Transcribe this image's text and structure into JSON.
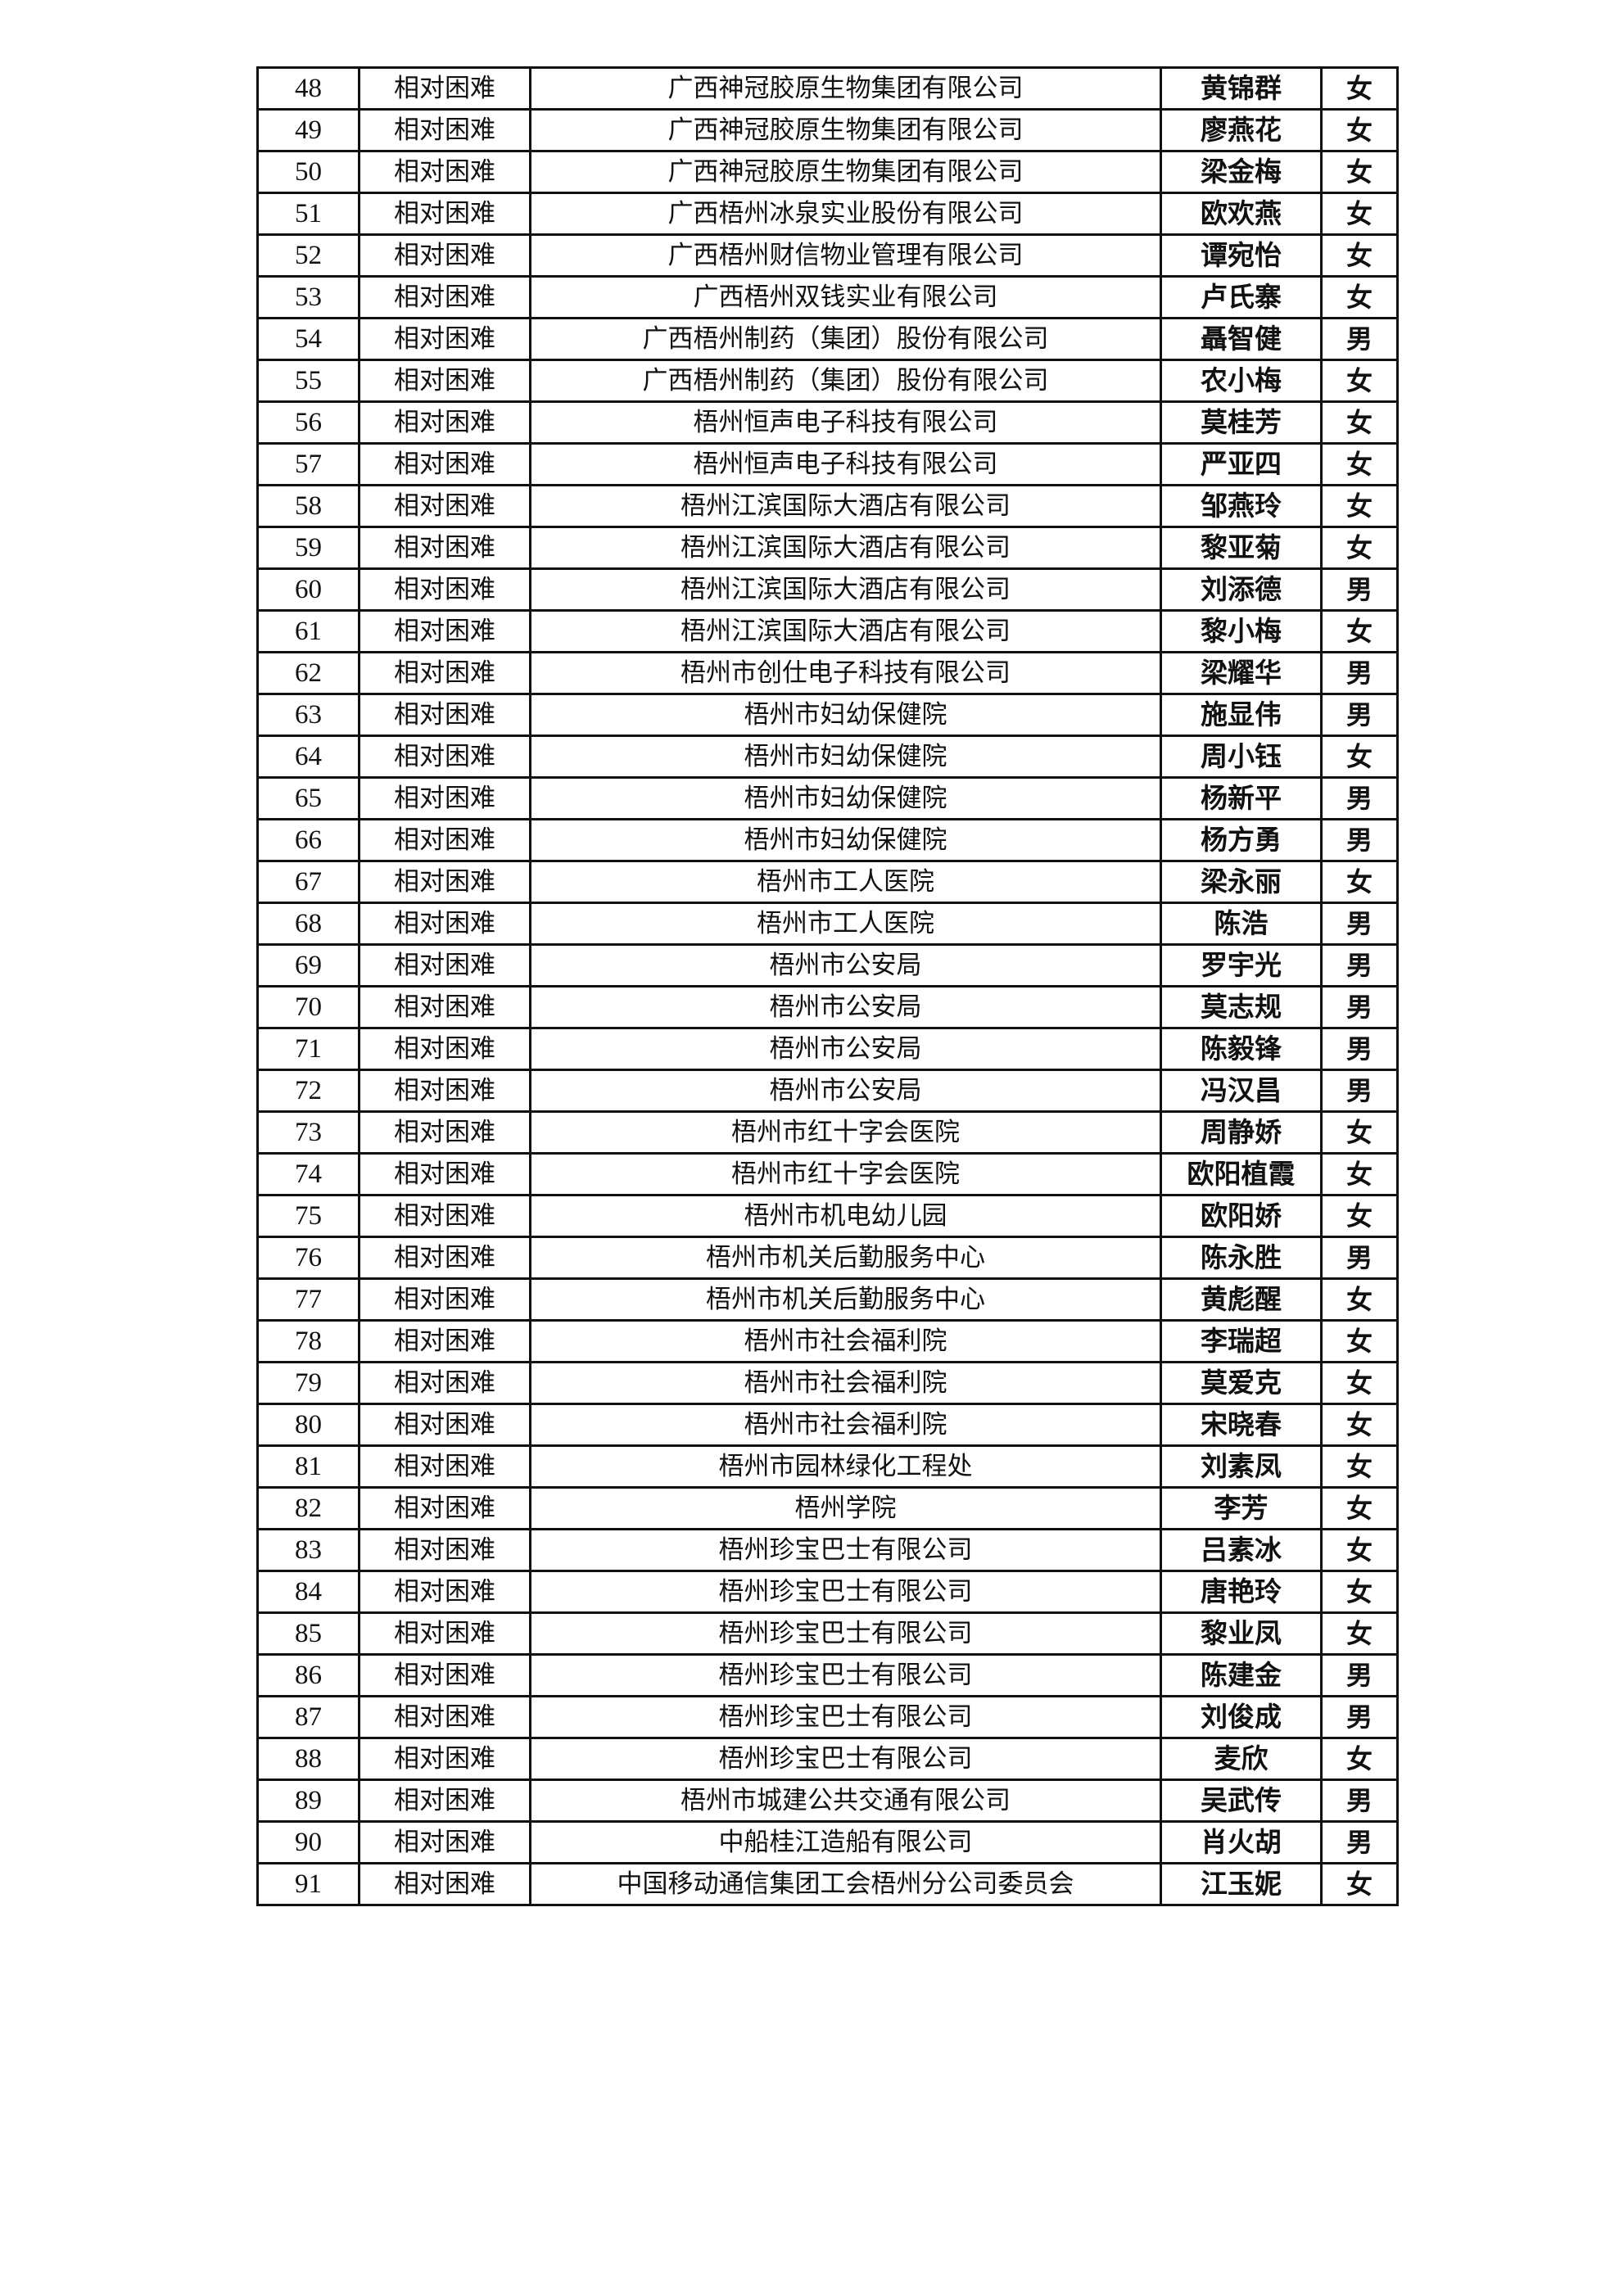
{
  "table": {
    "rows": [
      {
        "no": "48",
        "type": "相对困难",
        "company": "广西神冠胶原生物集团有限公司",
        "name": "黄锦群",
        "gender": "女"
      },
      {
        "no": "49",
        "type": "相对困难",
        "company": "广西神冠胶原生物集团有限公司",
        "name": "廖燕花",
        "gender": "女"
      },
      {
        "no": "50",
        "type": "相对困难",
        "company": "广西神冠胶原生物集团有限公司",
        "name": "梁金梅",
        "gender": "女"
      },
      {
        "no": "51",
        "type": "相对困难",
        "company": "广西梧州冰泉实业股份有限公司",
        "name": "欧欢燕",
        "gender": "女"
      },
      {
        "no": "52",
        "type": "相对困难",
        "company": "广西梧州财信物业管理有限公司",
        "name": "谭宛怡",
        "gender": "女"
      },
      {
        "no": "53",
        "type": "相对困难",
        "company": "广西梧州双钱实业有限公司",
        "name": "卢氏寨",
        "gender": "女"
      },
      {
        "no": "54",
        "type": "相对困难",
        "company": "广西梧州制药（集团）股份有限公司",
        "name": "聶智健",
        "gender": "男"
      },
      {
        "no": "55",
        "type": "相对困难",
        "company": "广西梧州制药（集团）股份有限公司",
        "name": "农小梅",
        "gender": "女"
      },
      {
        "no": "56",
        "type": "相对困难",
        "company": "梧州恒声电子科技有限公司",
        "name": "莫桂芳",
        "gender": "女"
      },
      {
        "no": "57",
        "type": "相对困难",
        "company": "梧州恒声电子科技有限公司",
        "name": "严亚四",
        "gender": "女"
      },
      {
        "no": "58",
        "type": "相对困难",
        "company": "梧州江滨国际大酒店有限公司",
        "name": "邹燕玲",
        "gender": "女"
      },
      {
        "no": "59",
        "type": "相对困难",
        "company": "梧州江滨国际大酒店有限公司",
        "name": "黎亚菊",
        "gender": "女"
      },
      {
        "no": "60",
        "type": "相对困难",
        "company": "梧州江滨国际大酒店有限公司",
        "name": "刘添德",
        "gender": "男"
      },
      {
        "no": "61",
        "type": "相对困难",
        "company": "梧州江滨国际大酒店有限公司",
        "name": "黎小梅",
        "gender": "女"
      },
      {
        "no": "62",
        "type": "相对困难",
        "company": "梧州市创仕电子科技有限公司",
        "name": "梁耀华",
        "gender": "男"
      },
      {
        "no": "63",
        "type": "相对困难",
        "company": "梧州市妇幼保健院",
        "name": "施显伟",
        "gender": "男"
      },
      {
        "no": "64",
        "type": "相对困难",
        "company": "梧州市妇幼保健院",
        "name": "周小钰",
        "gender": "女"
      },
      {
        "no": "65",
        "type": "相对困难",
        "company": "梧州市妇幼保健院",
        "name": "杨新平",
        "gender": "男"
      },
      {
        "no": "66",
        "type": "相对困难",
        "company": "梧州市妇幼保健院",
        "name": "杨方勇",
        "gender": "男"
      },
      {
        "no": "67",
        "type": "相对困难",
        "company": "梧州市工人医院",
        "name": "梁永丽",
        "gender": "女"
      },
      {
        "no": "68",
        "type": "相对困难",
        "company": "梧州市工人医院",
        "name": "陈浩",
        "gender": "男"
      },
      {
        "no": "69",
        "type": "相对困难",
        "company": "梧州市公安局",
        "name": "罗宇光",
        "gender": "男"
      },
      {
        "no": "70",
        "type": "相对困难",
        "company": "梧州市公安局",
        "name": "莫志规",
        "gender": "男"
      },
      {
        "no": "71",
        "type": "相对困难",
        "company": "梧州市公安局",
        "name": "陈毅锋",
        "gender": "男"
      },
      {
        "no": "72",
        "type": "相对困难",
        "company": "梧州市公安局",
        "name": "冯汉昌",
        "gender": "男"
      },
      {
        "no": "73",
        "type": "相对困难",
        "company": "梧州市红十字会医院",
        "name": "周静娇",
        "gender": "女"
      },
      {
        "no": "74",
        "type": "相对困难",
        "company": "梧州市红十字会医院",
        "name": "欧阳植霞",
        "gender": "女"
      },
      {
        "no": "75",
        "type": "相对困难",
        "company": "梧州市机电幼儿园",
        "name": "欧阳娇",
        "gender": "女"
      },
      {
        "no": "76",
        "type": "相对困难",
        "company": "梧州市机关后勤服务中心",
        "name": "陈永胜",
        "gender": "男"
      },
      {
        "no": "77",
        "type": "相对困难",
        "company": "梧州市机关后勤服务中心",
        "name": "黄彪醒",
        "gender": "女"
      },
      {
        "no": "78",
        "type": "相对困难",
        "company": "梧州市社会福利院",
        "name": "李瑞超",
        "gender": "女"
      },
      {
        "no": "79",
        "type": "相对困难",
        "company": "梧州市社会福利院",
        "name": "莫爱克",
        "gender": "女"
      },
      {
        "no": "80",
        "type": "相对困难",
        "company": "梧州市社会福利院",
        "name": "宋晓春",
        "gender": "女"
      },
      {
        "no": "81",
        "type": "相对困难",
        "company": "梧州市园林绿化工程处",
        "name": "刘素凤",
        "gender": "女"
      },
      {
        "no": "82",
        "type": "相对困难",
        "company": "梧州学院",
        "name": "李芳",
        "gender": "女"
      },
      {
        "no": "83",
        "type": "相对困难",
        "company": "梧州珍宝巴士有限公司",
        "name": "吕素冰",
        "gender": "女"
      },
      {
        "no": "84",
        "type": "相对困难",
        "company": "梧州珍宝巴士有限公司",
        "name": "唐艳玲",
        "gender": "女"
      },
      {
        "no": "85",
        "type": "相对困难",
        "company": "梧州珍宝巴士有限公司",
        "name": "黎业凤",
        "gender": "女"
      },
      {
        "no": "86",
        "type": "相对困难",
        "company": "梧州珍宝巴士有限公司",
        "name": "陈建金",
        "gender": "男"
      },
      {
        "no": "87",
        "type": "相对困难",
        "company": "梧州珍宝巴士有限公司",
        "name": "刘俊成",
        "gender": "男"
      },
      {
        "no": "88",
        "type": "相对困难",
        "company": "梧州珍宝巴士有限公司",
        "name": "麦欣",
        "gender": "女"
      },
      {
        "no": "89",
        "type": "相对困难",
        "company": "梧州市城建公共交通有限公司",
        "name": "吴武传",
        "gender": "男"
      },
      {
        "no": "90",
        "type": "相对困难",
        "company": "中船桂江造船有限公司",
        "name": "肖火胡",
        "gender": "男"
      },
      {
        "no": "91",
        "type": "相对困难",
        "company": "中国移动通信集团工会梧州分公司委员会",
        "name": "江玉妮",
        "gender": "女"
      }
    ]
  }
}
